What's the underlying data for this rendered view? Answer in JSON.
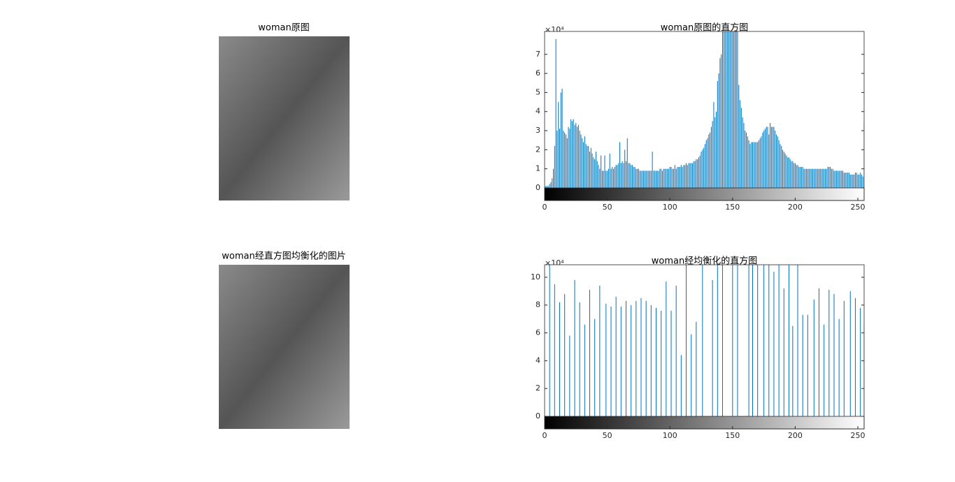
{
  "images": [
    {
      "title": "woman原图"
    },
    {
      "title": "woman经直方图均衡化的图片"
    }
  ],
  "chart_data": [
    {
      "type": "stem",
      "title": "woman原图的直方图",
      "exponent_label": "×10⁴",
      "color": "#0072bd",
      "x": [
        0,
        1,
        2,
        3,
        4,
        5,
        6,
        7,
        8,
        9,
        10,
        11,
        12,
        13,
        14,
        15,
        16,
        17,
        18,
        19,
        20,
        21,
        22,
        23,
        24,
        25,
        26,
        27,
        28,
        29,
        30,
        31,
        32,
        33,
        34,
        35,
        36,
        37,
        38,
        39,
        40,
        41,
        42,
        43,
        44,
        45,
        46,
        47,
        48,
        49,
        50,
        51,
        52,
        53,
        54,
        55,
        56,
        57,
        58,
        59,
        60,
        61,
        62,
        63,
        64,
        65,
        66,
        67,
        68,
        69,
        70,
        71,
        72,
        73,
        74,
        75,
        76,
        77,
        78,
        79,
        80,
        81,
        82,
        83,
        84,
        85,
        86,
        87,
        88,
        89,
        90,
        91,
        92,
        93,
        94,
        95,
        96,
        97,
        98,
        99,
        100,
        101,
        102,
        103,
        104,
        105,
        106,
        107,
        108,
        109,
        110,
        111,
        112,
        113,
        114,
        115,
        116,
        117,
        118,
        119,
        120,
        121,
        122,
        123,
        124,
        125,
        126,
        127,
        128,
        129,
        130,
        131,
        132,
        133,
        134,
        135,
        136,
        137,
        138,
        139,
        140,
        141,
        142,
        143,
        144,
        145,
        146,
        147,
        148,
        149,
        150,
        151,
        152,
        153,
        154,
        155,
        156,
        157,
        158,
        159,
        160,
        161,
        162,
        163,
        164,
        165,
        166,
        167,
        168,
        169,
        170,
        171,
        172,
        173,
        174,
        175,
        176,
        177,
        178,
        179,
        180,
        181,
        182,
        183,
        184,
        185,
        186,
        187,
        188,
        189,
        190,
        191,
        192,
        193,
        194,
        195,
        196,
        197,
        198,
        199,
        200,
        201,
        202,
        203,
        204,
        205,
        206,
        207,
        208,
        209,
        210,
        211,
        212,
        213,
        214,
        215,
        216,
        217,
        218,
        219,
        220,
        221,
        222,
        223,
        224,
        225,
        226,
        227,
        228,
        229,
        230,
        231,
        232,
        233,
        234,
        235,
        236,
        237,
        238,
        239,
        240,
        241,
        242,
        243,
        244,
        245,
        246,
        247,
        248,
        249,
        250,
        251,
        252,
        253,
        254,
        255
      ],
      "values": [
        0.1,
        0.1,
        0.1,
        0.1,
        0.2,
        0.3,
        0.5,
        1.0,
        2.2,
        7.8,
        3.0,
        4.5,
        3.1,
        5.0,
        5.2,
        3.0,
        2.9,
        2.8,
        2.6,
        3.2,
        3.1,
        3.6,
        3.5,
        3.6,
        3.3,
        3.4,
        3.2,
        3.3,
        3.0,
        2.8,
        2.6,
        2.4,
        2.7,
        2.3,
        2.2,
        2.2,
        1.9,
        2.1,
        1.8,
        1.6,
        1.5,
        1.9,
        1.4,
        1.2,
        1.0,
        1.7,
        0.9,
        0.9,
        1.7,
        0.9,
        0.9,
        1.0,
        1.8,
        1.0,
        1.1,
        1.0,
        1.1,
        1.2,
        1.2,
        1.3,
        2.4,
        1.3,
        1.4,
        1.3,
        2.0,
        1.4,
        2.6,
        1.3,
        1.3,
        1.2,
        1.2,
        1.1,
        1.1,
        1.0,
        1.0,
        1.0,
        0.9,
        0.9,
        0.9,
        0.9,
        0.9,
        0.9,
        0.9,
        0.9,
        0.9,
        0.9,
        1.9,
        0.9,
        0.9,
        0.9,
        0.9,
        0.9,
        1.0,
        1.0,
        0.9,
        1.0,
        1.0,
        1.0,
        1.0,
        1.0,
        1.1,
        1.1,
        1.0,
        1.0,
        1.2,
        1.0,
        1.1,
        1.1,
        1.1,
        1.2,
        1.1,
        1.2,
        1.2,
        1.3,
        1.2,
        1.3,
        1.3,
        1.3,
        1.3,
        1.4,
        1.4,
        1.5,
        1.5,
        1.6,
        1.7,
        1.9,
        2.0,
        2.1,
        2.3,
        2.5,
        2.6,
        2.8,
        2.9,
        3.2,
        3.5,
        4.5,
        3.7,
        4.0,
        5.6,
        6.0,
        6.8,
        7.0,
        8.2,
        8.2,
        8.2,
        8.2,
        8.2,
        8.2,
        8.2,
        8.2,
        8.2,
        8.2,
        8.2,
        8.2,
        8.2,
        5.4,
        4.6,
        4.2,
        3.7,
        3.4,
        3.0,
        2.9,
        2.7,
        2.5,
        2.3,
        2.4,
        2.4,
        2.4,
        2.4,
        2.4,
        2.4,
        2.5,
        2.6,
        2.7,
        2.9,
        3.0,
        3.1,
        3.2,
        3.2,
        2.8,
        3.4,
        3.2,
        3.2,
        3.2,
        3.0,
        2.8,
        2.7,
        2.5,
        2.3,
        2.2,
        2.0,
        1.9,
        1.8,
        1.7,
        1.6,
        1.6,
        1.5,
        1.4,
        1.4,
        1.3,
        1.3,
        1.2,
        1.2,
        1.1,
        1.1,
        1.1,
        1.1,
        1.0,
        1.0,
        1.0,
        1.0,
        1.0,
        1.0,
        1.0,
        1.0,
        1.0,
        1.0,
        1.0,
        1.0,
        1.0,
        1.0,
        1.0,
        1.0,
        1.0,
        1.0,
        1.0,
        1.1,
        1.1,
        1.1,
        1.0,
        1.0,
        0.9,
        0.9,
        0.9,
        0.9,
        0.9,
        0.9,
        0.9,
        0.9,
        0.8,
        0.8,
        0.8,
        0.8,
        0.8,
        0.7,
        0.7,
        0.7,
        0.7,
        0.8,
        0.8,
        0.7,
        0.7,
        0.8,
        0.7,
        0.6,
        3.4
      ],
      "xlim": [
        0,
        255
      ],
      "ylim": [
        0,
        8.2
      ],
      "xticks": [
        0,
        50,
        100,
        150,
        200,
        250
      ],
      "yticks": [
        0,
        1,
        2,
        3,
        4,
        5,
        6,
        7
      ]
    },
    {
      "type": "stem",
      "title": "woman经均衡化的直方图",
      "exponent_label": "×10⁴",
      "color": "#0072bd",
      "x": [
        4,
        8,
        12,
        16,
        20,
        24,
        28,
        32,
        36,
        40,
        44,
        49,
        53,
        57,
        61,
        65,
        69,
        73,
        77,
        81,
        85,
        89,
        93,
        97,
        101,
        105,
        109,
        113,
        117,
        121,
        126,
        134,
        138,
        142,
        150,
        154,
        163,
        166,
        170,
        175,
        179,
        183,
        187,
        191,
        195,
        198,
        202,
        206,
        210,
        215,
        219,
        223,
        227,
        231,
        235,
        239,
        244,
        248,
        252,
        255
      ],
      "values": [
        10.9,
        9.5,
        8.2,
        8.8,
        5.8,
        9.8,
        8.2,
        6.6,
        9.1,
        7.0,
        9.4,
        8.1,
        7.9,
        8.6,
        7.9,
        8.3,
        8.0,
        8.3,
        8.5,
        8.3,
        8.0,
        7.8,
        7.6,
        9.7,
        7.6,
        9.4,
        4.4,
        10.9,
        5.9,
        6.8,
        10.9,
        9.8,
        10.9,
        10.9,
        10.9,
        10.9,
        10.9,
        10.9,
        10.9,
        10.9,
        10.9,
        10.4,
        10.9,
        9.2,
        10.9,
        6.5,
        10.9,
        7.3,
        7.3,
        8.4,
        9.2,
        6.6,
        9.1,
        8.8,
        7.0,
        8.3,
        9.0,
        8.5,
        7.8,
        6.6
      ],
      "xlim": [
        0,
        255
      ],
      "ylim": [
        0,
        10.9
      ],
      "xticks": [
        0,
        50,
        100,
        150,
        200,
        250
      ],
      "yticks": [
        0,
        2,
        4,
        6,
        8,
        10
      ]
    }
  ]
}
